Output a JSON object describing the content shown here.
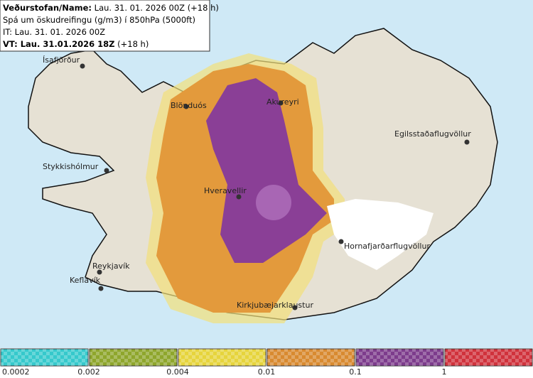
{
  "header": {
    "line1_bold": "Veðurstofan/Name:",
    "line1_rest": "Lau. 31. 01. 2026 00Z (+18 h)",
    "line2": "Spá um öskudreifingu (g/m3) í 850hPa (5000ft)",
    "line3": "IT: Lau. 31. 01. 2026 00Z",
    "line4_bold": "VT: Lau. 31.01.2026 18Z",
    "line4_rest": "(+18 h)"
  },
  "places": [
    "Ísafjörður",
    "Blönduós",
    "Akureyri",
    "Egilsstaðaflugvöllur",
    "Stykkishólmur",
    "Hveravellir",
    "Hornafjarðarflugvöllur",
    "Reykjavík",
    "Keflavík",
    "Kirkjubæjarklaustur"
  ],
  "legend": {
    "colors": [
      "#36c9cc",
      "#8ea62c",
      "#e6d43c",
      "#d88a30",
      "#7d3c8c",
      "#d0323c"
    ],
    "labels": [
      "0.0002",
      "0.002",
      "0.004",
      "0.01",
      "0.1",
      "1"
    ]
  }
}
